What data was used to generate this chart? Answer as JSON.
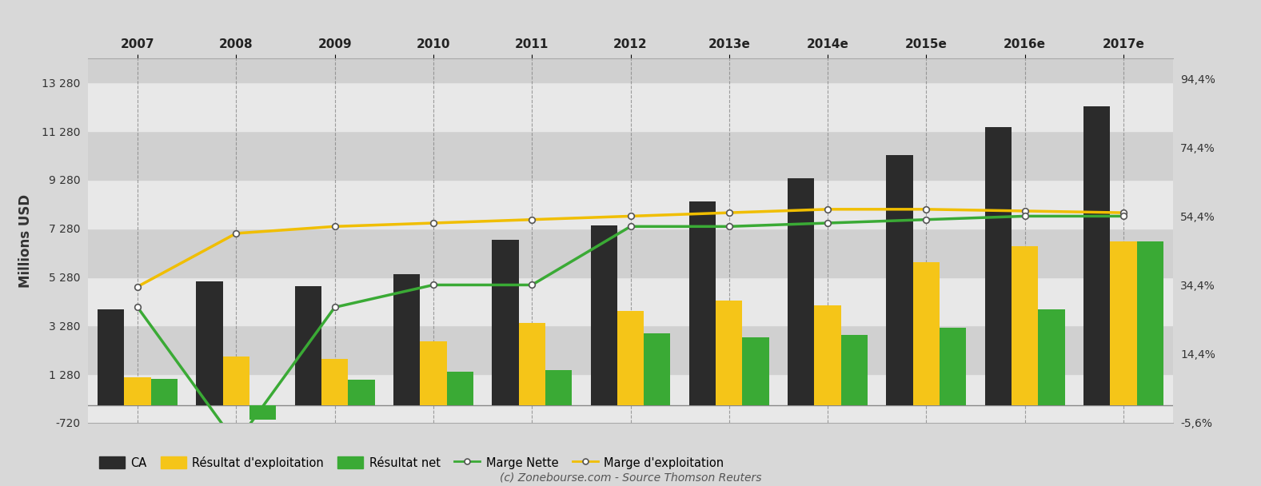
{
  "years": [
    "2007",
    "2008",
    "2009",
    "2010",
    "2011",
    "2012",
    "2013e",
    "2014e",
    "2015e",
    "2016e",
    "2017e"
  ],
  "ca": [
    3950,
    5100,
    4900,
    5400,
    6800,
    7400,
    8400,
    9350,
    10300,
    11450,
    12300
  ],
  "resultat_exploitation": [
    1150,
    2000,
    1900,
    2650,
    3400,
    3900,
    4300,
    4100,
    5900,
    6550,
    6750
  ],
  "resultat_net": [
    1100,
    -600,
    1050,
    1400,
    1450,
    2950,
    2800,
    2900,
    3200,
    3950,
    6750
  ],
  "marge_nette": [
    28.0,
    -11.5,
    28.0,
    34.5,
    34.5,
    51.5,
    51.5,
    52.5,
    53.5,
    54.5,
    54.5
  ],
  "marge_exploitation": [
    34.0,
    49.5,
    51.5,
    52.5,
    53.5,
    54.5,
    55.5,
    56.5,
    56.5,
    56.0,
    55.5
  ],
  "ylim_left": [
    -720,
    14280
  ],
  "ylim_right": [
    -5.6,
    100.4
  ],
  "yticks_left": [
    -720,
    1280,
    3280,
    5280,
    7280,
    9280,
    11280,
    13280
  ],
  "ytick_labels_left": [
    "-720",
    "1 280",
    "3 280",
    "5 280",
    "7 280",
    "9 280",
    "11 280",
    "13 280"
  ],
  "yticks_right": [
    -5.6,
    14.4,
    34.4,
    54.4,
    74.4,
    94.4
  ],
  "ytick_labels_right": [
    "-5,6%",
    "14,4%",
    "34,4%",
    "54,4%",
    "74,4%",
    "94,4%"
  ],
  "ylabel": "Millions USD",
  "color_ca": "#2b2b2b",
  "color_exploitation": "#f5c518",
  "color_net": "#3aaa35",
  "color_marge_nette_line": "#3aaa35",
  "color_marge_exploit_line": "#f0be00",
  "bg_color": "#d8d8d8",
  "band_colors": [
    "#e8e8e8",
    "#d0d0d0"
  ],
  "grid_color": "#888888",
  "footer_text": "(c) Zonebourse.com - Source Thomson Reuters",
  "legend_ca": "CA",
  "legend_exploit": "Résultat d'exploitation",
  "legend_net": "Résultat net",
  "legend_marge_nette": "Marge Nette",
  "legend_marge_exploit": "Marge d'exploitation",
  "band_yticks": [
    -720,
    1280,
    3280,
    5280,
    7280,
    9280,
    11280,
    13280
  ]
}
